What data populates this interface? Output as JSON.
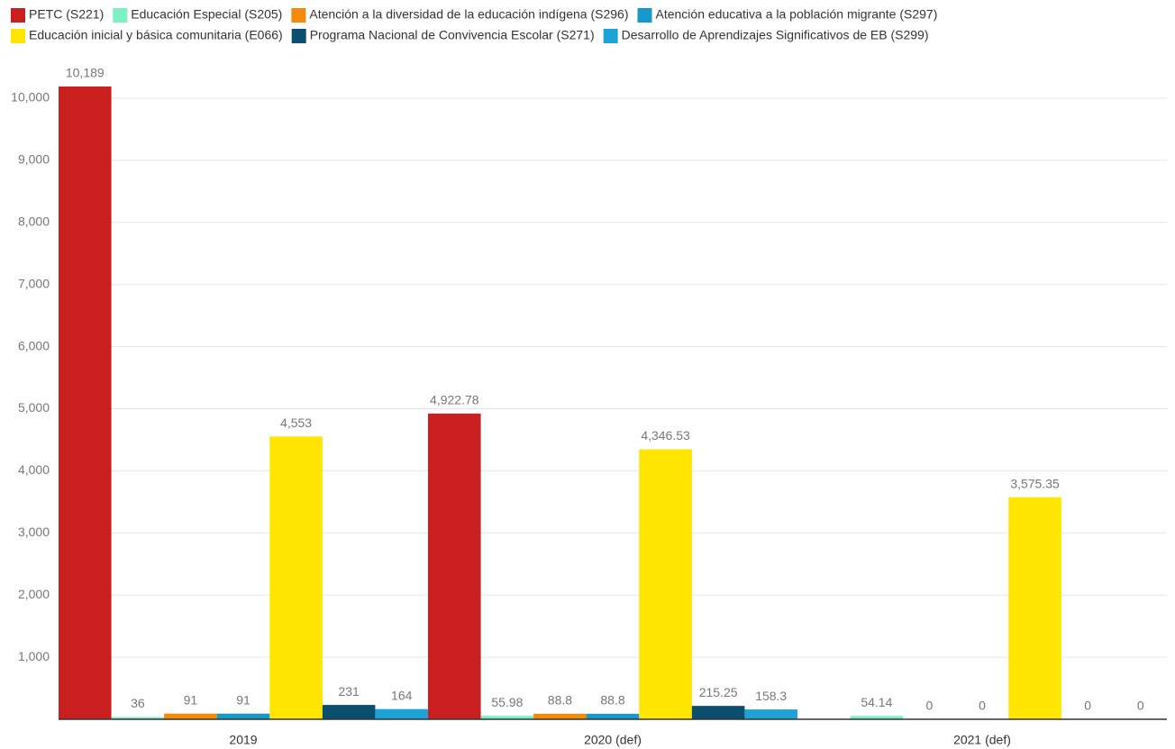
{
  "chart_data": {
    "type": "bar",
    "categories": [
      "2019",
      "2020 (def)",
      "2021 (def)"
    ],
    "series": [
      {
        "name": "PETC (S221)",
        "color": "#c91f1f",
        "values": [
          10189,
          4922.78,
          null
        ],
        "value_labels": [
          "10,189",
          "4,922.78",
          null
        ]
      },
      {
        "name": "Educación Especial (S205)",
        "color": "#7df0c4",
        "values": [
          36,
          55.98,
          54.14
        ],
        "value_labels": [
          "36",
          "55.98",
          "54.14"
        ]
      },
      {
        "name": "Atención a la diversidad de la educación indígena (S296)",
        "color": "#f28a0c",
        "values": [
          91,
          88.8,
          0
        ],
        "value_labels": [
          "91",
          "88.8",
          "0"
        ]
      },
      {
        "name": "Atención educativa a la población migrante (S297)",
        "color": "#1799c9",
        "values": [
          91,
          88.8,
          0
        ],
        "value_labels": [
          "91",
          "88.8",
          "0"
        ]
      },
      {
        "name": "Educación inicial y básica comunitaria (E066)",
        "color": "#ffe500",
        "values": [
          4553,
          4346.53,
          3575.35
        ],
        "value_labels": [
          "4,553",
          "4,346.53",
          "3,575.35"
        ]
      },
      {
        "name": "Programa Nacional de Convivencia Escolar (S271)",
        "color": "#0b4f70",
        "values": [
          231,
          215.25,
          0
        ],
        "value_labels": [
          "231",
          "215.25",
          "0"
        ]
      },
      {
        "name": "Desarrollo de Aprendizajes Significativos de EB (S299)",
        "color": "#1ea3d6",
        "values": [
          164,
          158.3,
          0
        ],
        "value_labels": [
          "164",
          "158.3",
          "0"
        ]
      }
    ],
    "ylim": [
      0,
      10000
    ],
    "yticks": [
      {
        "value": 1000,
        "label": "1,000"
      },
      {
        "value": 2000,
        "label": "2,000"
      },
      {
        "value": 3000,
        "label": "3,000"
      },
      {
        "value": 4000,
        "label": "4,000"
      },
      {
        "value": 5000,
        "label": "5,000"
      },
      {
        "value": 6000,
        "label": "6,000"
      },
      {
        "value": 7000,
        "label": "7,000"
      },
      {
        "value": 8000,
        "label": "8,000"
      },
      {
        "value": 9000,
        "label": "9,000"
      },
      {
        "value": 10000,
        "label": "10,000"
      }
    ],
    "grid": true,
    "legend": "top"
  }
}
